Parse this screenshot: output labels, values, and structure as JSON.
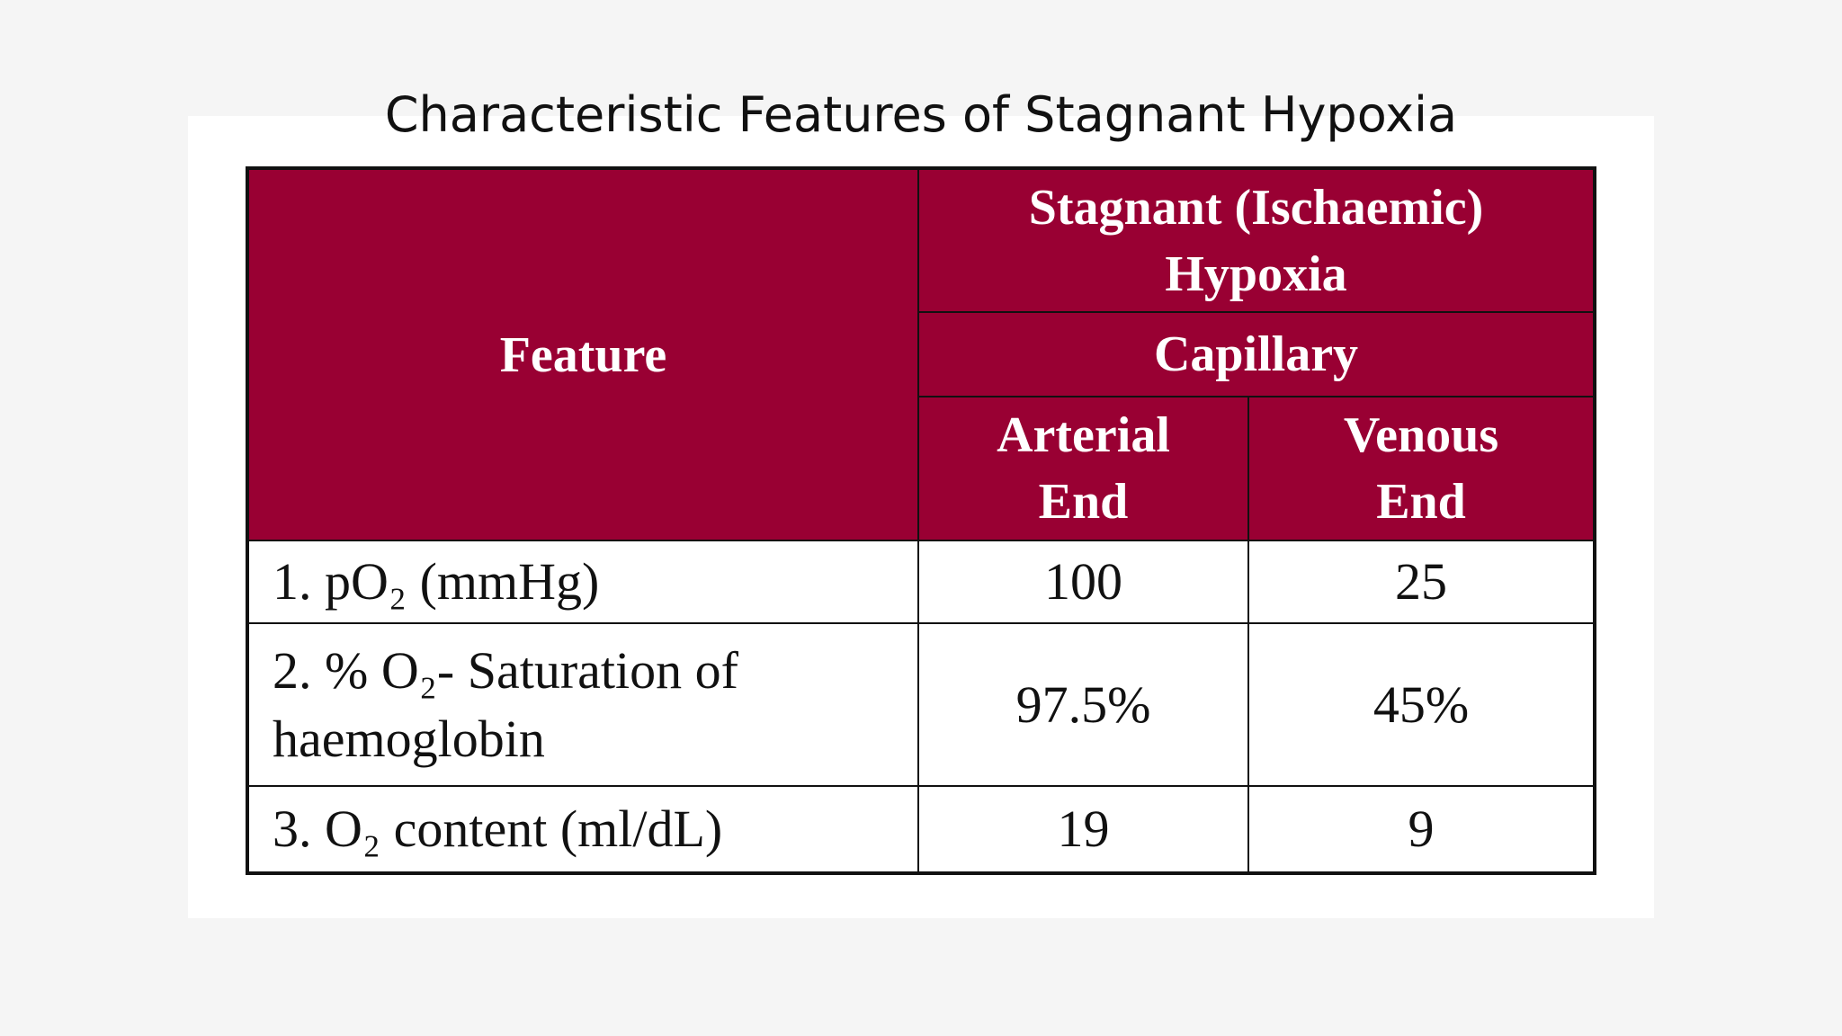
{
  "title": "Characteristic Features of Stagnant Hypoxia",
  "table": {
    "header": {
      "feature": "Feature",
      "group": "Stagnant (Ischaemic) Hypoxia",
      "subgroup": "Capillary",
      "columns": [
        "Arterial End",
        "Venous End"
      ]
    },
    "rows": [
      [
        "1. pO₂ (mmHg)",
        100,
        25
      ],
      [
        "2. % O₂- Saturation of haemoglobin",
        "97.5%",
        "45%"
      ],
      [
        "3. O₂ content (ml/dL)",
        19,
        9
      ]
    ]
  }
}
